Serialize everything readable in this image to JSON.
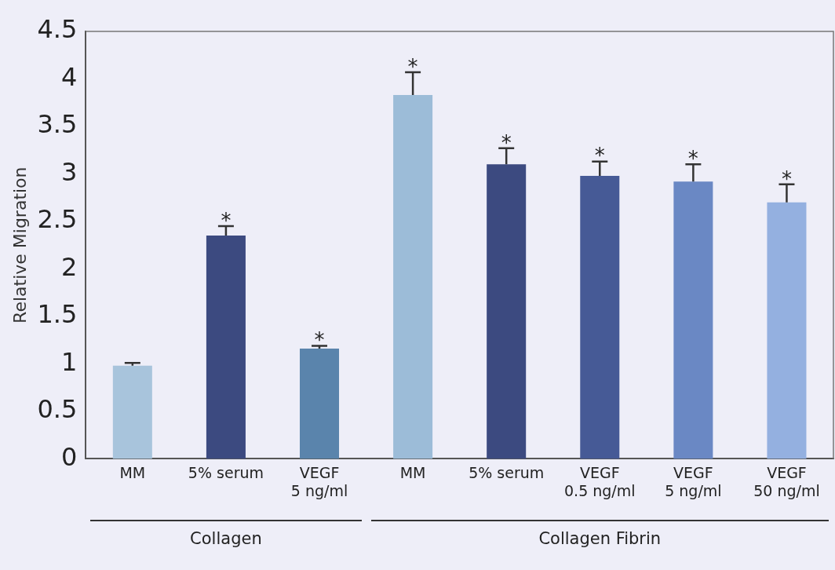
{
  "chart_data": {
    "type": "bar",
    "ylabel": "Relative Migration",
    "categories": [
      "MM",
      "5% serum",
      "VEGF\n5 ng/ml",
      "MM",
      "5% serum",
      "VEGF\n0.5 ng/ml",
      "VEGF\n5 ng/ml",
      "VEGF\n50 ng/ml"
    ],
    "values": [
      0.98,
      2.35,
      1.16,
      3.83,
      3.1,
      2.98,
      2.92,
      2.7
    ],
    "errors": [
      0.03,
      0.1,
      0.03,
      0.24,
      0.17,
      0.15,
      0.18,
      0.19
    ],
    "value_labels": [
      null,
      "*",
      "*",
      "*",
      "*",
      "*",
      "*",
      "*"
    ],
    "colors": [
      "#a8c4dc",
      "#3c4a80",
      "#5a84ac",
      "#9cbcd8",
      "#3c4a80",
      "#465a96",
      "#6a88c4",
      "#94b0e0"
    ],
    "ylim": [
      0,
      4.5
    ],
    "yticks": [
      0,
      0.5,
      1,
      1.5,
      2,
      2.5,
      3,
      3.5,
      4,
      4.5
    ],
    "annotations": [
      "Collagen",
      "Collagen Fibrin"
    ],
    "grid": false,
    "legend": false
  }
}
